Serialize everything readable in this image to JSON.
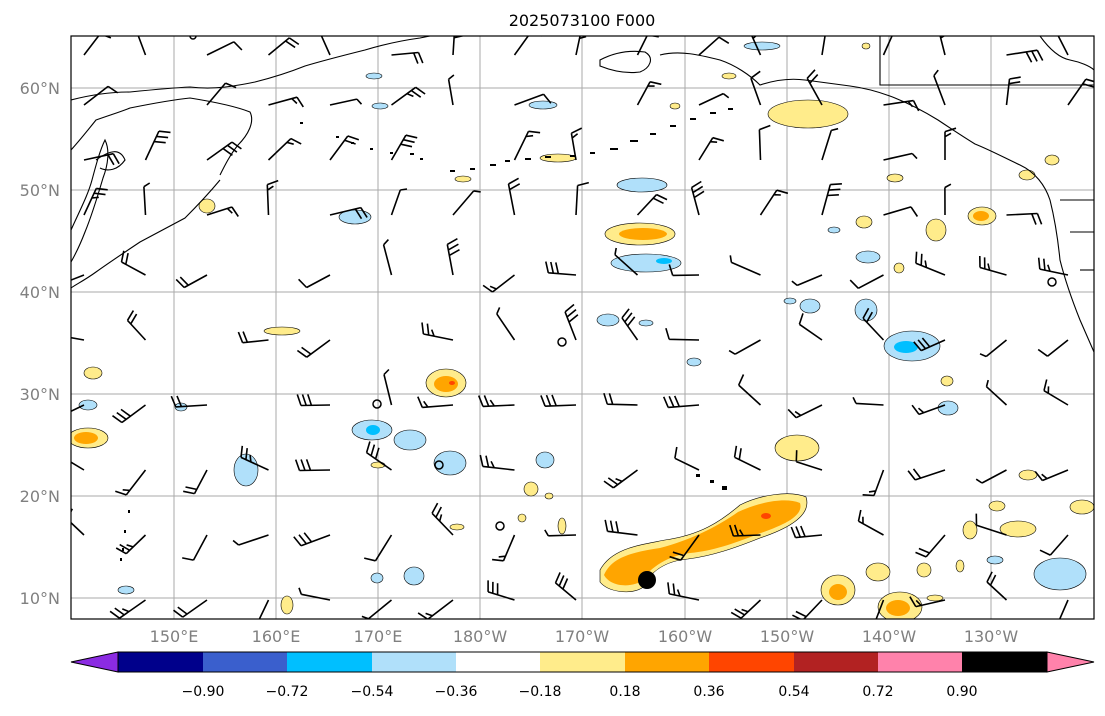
{
  "title": "2025073100 F000",
  "lat_labels": [
    "60°N",
    "50°N",
    "40°N",
    "30°N",
    "20°N",
    "10°N"
  ],
  "lon_labels": [
    "150°E",
    "160°E",
    "170°E",
    "180°W",
    "170°W",
    "160°W",
    "150°W",
    "140°W",
    "130°W"
  ],
  "colorbar": {
    "tick_labels": [
      "−0.90",
      "−0.72",
      "−0.54",
      "−0.36",
      "−0.18",
      "0.18",
      "0.36",
      "0.54",
      "0.72",
      "0.90"
    ],
    "colors": [
      "#8b2be2",
      "#00008b",
      "#3a5fcd",
      "#00bfff",
      "#b0e0fa",
      "#ffffff",
      "#ffec8b",
      "#ffa500",
      "#ff4500",
      "#b22222",
      "#ff82ab"
    ]
  },
  "map": {
    "grid_color": "#aaaaaa",
    "coast_color": "#000000",
    "map_extent": {
      "lon_min": 140,
      "lon max": 240,
      "lat_min": 8,
      "lat_max": 65
    }
  }
}
